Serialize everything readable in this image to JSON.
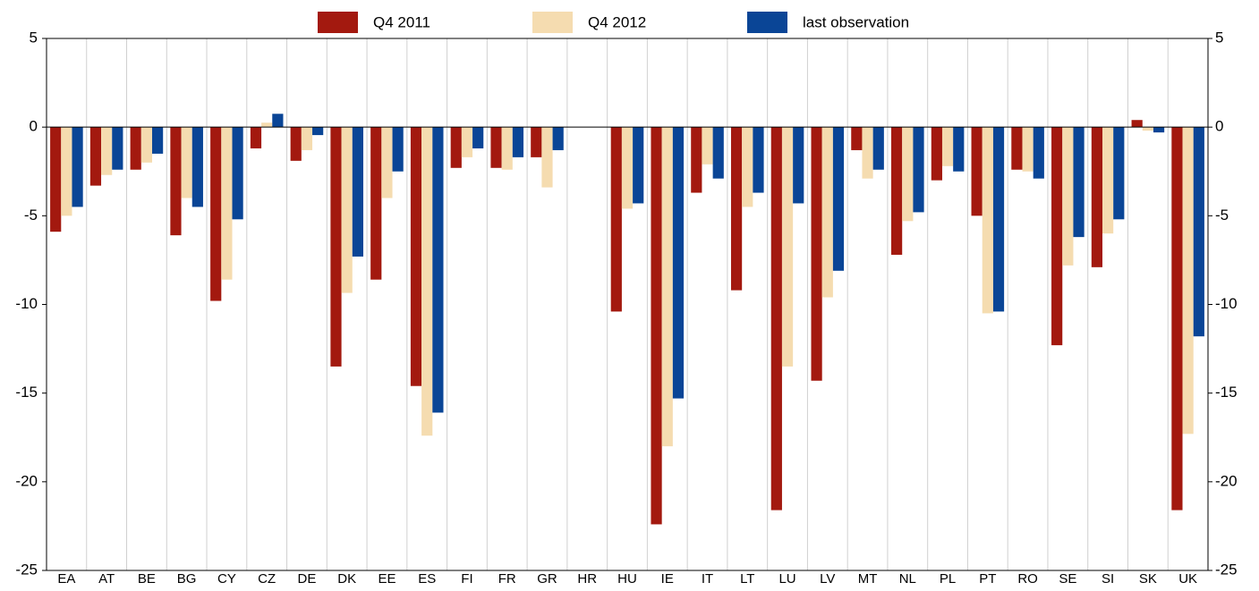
{
  "chart_data": {
    "type": "bar",
    "categories": [
      "EA",
      "AT",
      "BE",
      "BG",
      "CY",
      "CZ",
      "DE",
      "DK",
      "EE",
      "ES",
      "FI",
      "FR",
      "GR",
      "HR",
      "HU",
      "IE",
      "IT",
      "LT",
      "LU",
      "LV",
      "MT",
      "NL",
      "PL",
      "PT",
      "RO",
      "SE",
      "SI",
      "SK",
      "UK"
    ],
    "series": [
      {
        "name": "Q4 2011",
        "color": "#a3190f",
        "values": [
          -5.9,
          -3.3,
          -2.4,
          -6.1,
          -9.8,
          -1.2,
          -1.9,
          -13.5,
          -8.6,
          -14.6,
          -2.3,
          -2.3,
          -1.7,
          null,
          -10.4,
          -22.4,
          -3.7,
          -9.2,
          -21.6,
          -14.3,
          -1.3,
          -7.2,
          -3.0,
          -5.0,
          -2.4,
          -12.3,
          -7.9,
          0.4,
          -21.6
        ]
      },
      {
        "name": "Q4 2012",
        "color": "#f5dcb0",
        "values": [
          -5.0,
          -2.7,
          -2.0,
          -4.0,
          -8.6,
          0.25,
          -1.3,
          -9.35,
          -4.0,
          -17.4,
          -1.7,
          -2.4,
          -3.4,
          null,
          -4.6,
          -18.0,
          -2.1,
          -4.5,
          -13.5,
          -9.6,
          -2.9,
          -5.3,
          -2.2,
          -10.5,
          -2.5,
          -7.8,
          -6.0,
          -0.2,
          -17.3
        ]
      },
      {
        "name": "last observation",
        "color": "#0a4596",
        "values": [
          -4.5,
          -2.4,
          -1.5,
          -4.5,
          -5.2,
          0.75,
          -0.45,
          -7.3,
          -2.5,
          -16.1,
          -1.2,
          -1.7,
          -1.3,
          null,
          -4.3,
          -15.3,
          -2.9,
          -3.7,
          -4.3,
          -8.1,
          -2.4,
          -4.8,
          -2.5,
          -10.4,
          -2.9,
          -6.2,
          -5.2,
          -0.3,
          -11.8
        ]
      }
    ],
    "ylim": [
      -25,
      5
    ],
    "yticks": [
      -25,
      -20,
      -15,
      -10,
      -5,
      0,
      5
    ],
    "y2lim": [
      -25,
      5
    ],
    "y2ticks": [
      -25,
      -20,
      -15,
      -10,
      -5,
      0,
      5
    ]
  }
}
